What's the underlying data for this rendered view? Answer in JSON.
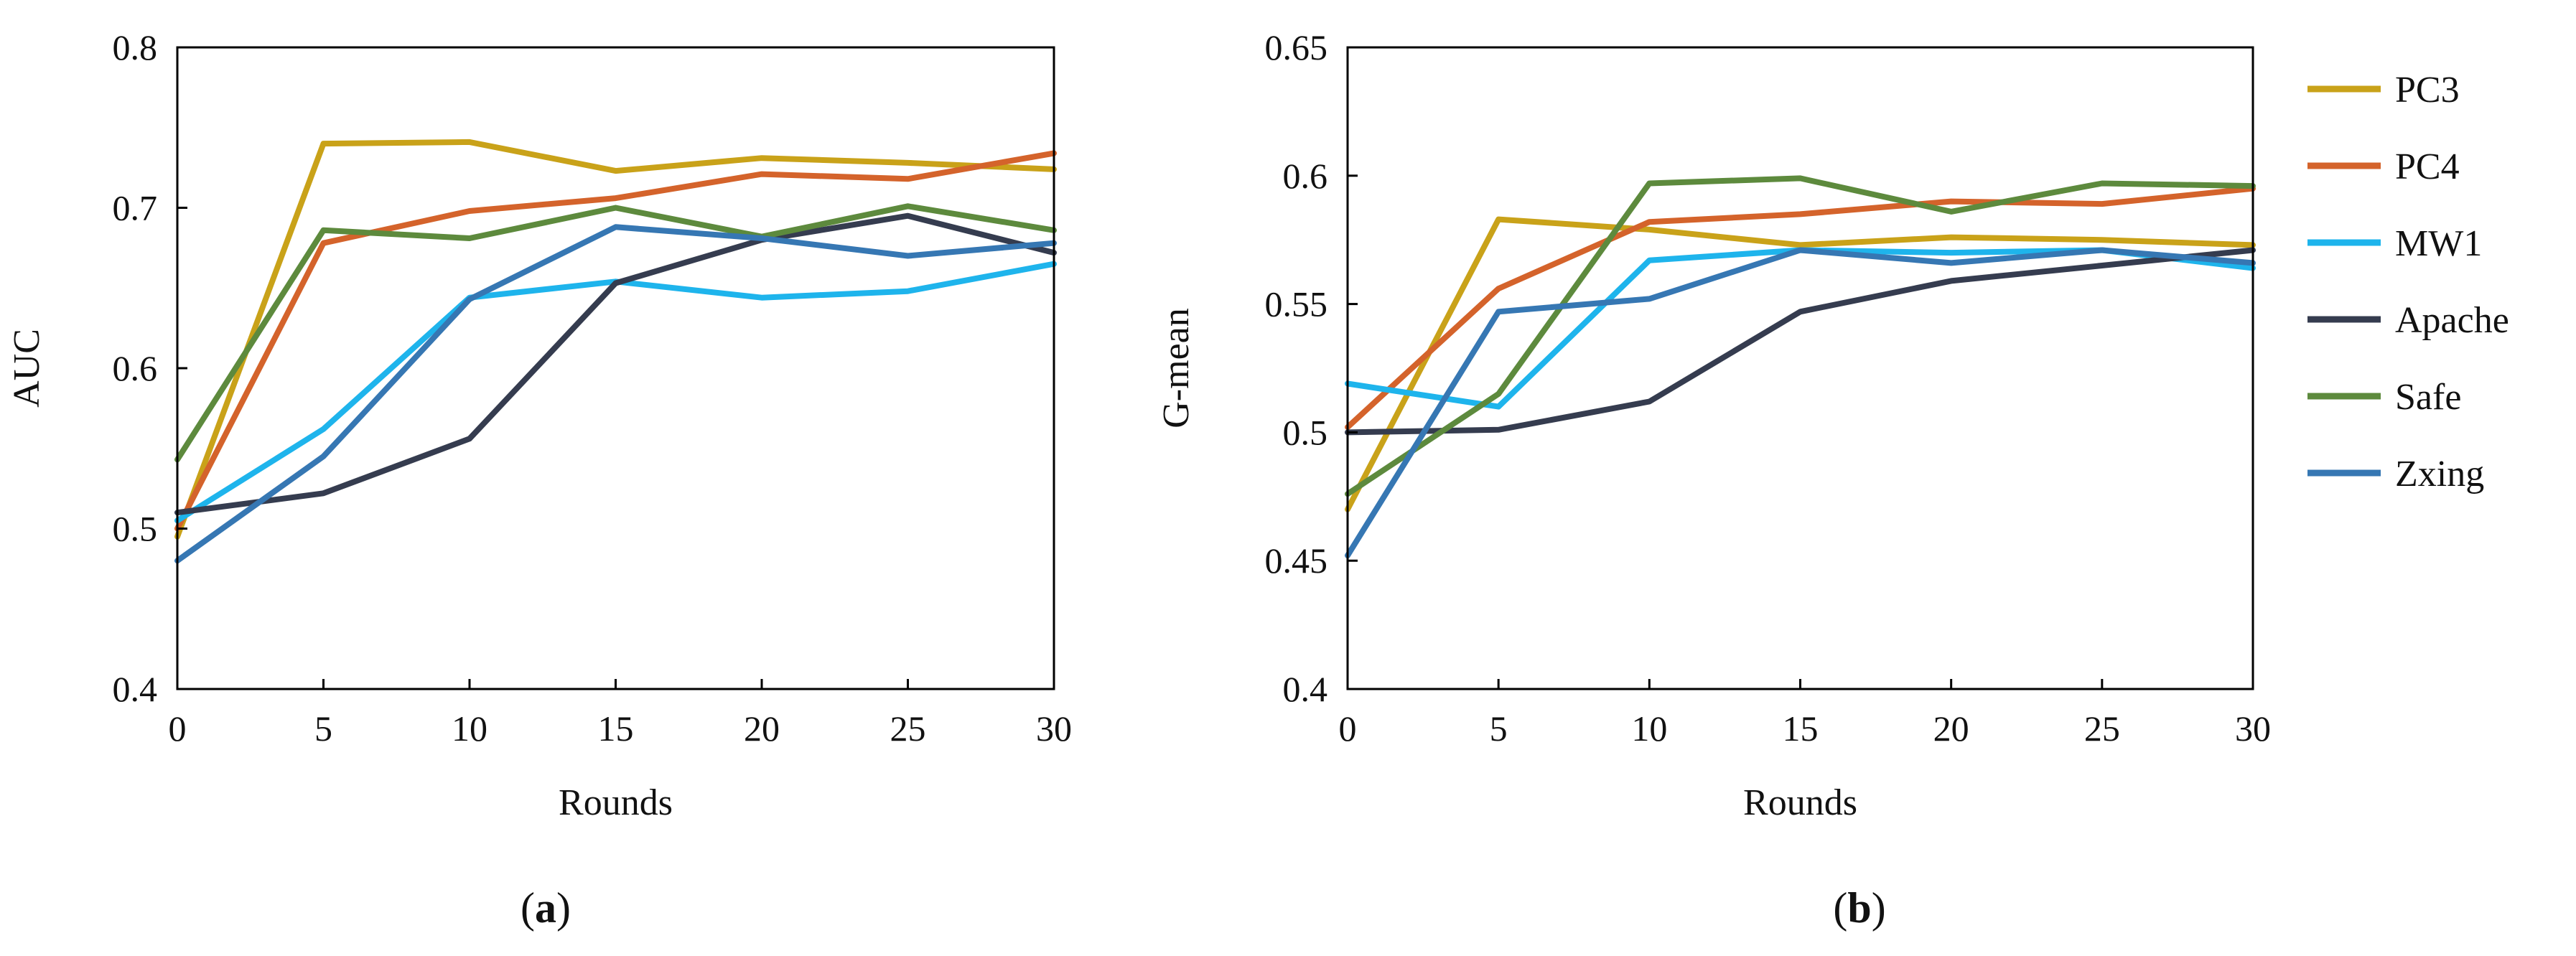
{
  "colors": {
    "PC3": "#C9A219",
    "PC4": "#D4632B",
    "MW1": "#1EB4EC",
    "Apache": "#353C4F",
    "Safe": "#5D8A3D",
    "Zxing": "#3677B3"
  },
  "legend": [
    "PC3",
    "PC4",
    "MW1",
    "Apache",
    "Safe",
    "Zxing"
  ],
  "panels": [
    {
      "open": "(",
      "letter": "a",
      "close": ")"
    },
    {
      "open": "(",
      "letter": "b",
      "close": ")"
    }
  ],
  "chart_data": [
    {
      "type": "line",
      "title": "",
      "xlabel": "Rounds",
      "ylabel": "AUC",
      "x": [
        0,
        5,
        10,
        15,
        20,
        25,
        30
      ],
      "xticks": [
        "0",
        "5",
        "10",
        "15",
        "20",
        "25",
        "30"
      ],
      "yticks": [
        "0.4",
        "0.5",
        "0.6",
        "0.7",
        "0.8"
      ],
      "ytick_values": [
        0.4,
        0.5,
        0.6,
        0.7,
        0.8
      ],
      "xlim": [
        0,
        30
      ],
      "ylim": [
        0.4,
        0.8
      ],
      "grid": false,
      "series": [
        {
          "name": "PC3",
          "values": [
            0.495,
            0.74,
            0.741,
            0.723,
            0.731,
            0.728,
            0.724
          ]
        },
        {
          "name": "PC4",
          "values": [
            0.5,
            0.678,
            0.698,
            0.706,
            0.721,
            0.718,
            0.734
          ]
        },
        {
          "name": "MW1",
          "values": [
            0.505,
            0.562,
            0.644,
            0.654,
            0.644,
            0.648,
            0.665
          ]
        },
        {
          "name": "Apache",
          "values": [
            0.51,
            0.522,
            0.556,
            0.653,
            0.68,
            0.695,
            0.672
          ]
        },
        {
          "name": "Safe",
          "values": [
            0.543,
            0.686,
            0.681,
            0.7,
            0.682,
            0.701,
            0.686
          ]
        },
        {
          "name": "Zxing",
          "values": [
            0.48,
            0.545,
            0.643,
            0.688,
            0.681,
            0.67,
            0.678
          ]
        }
      ]
    },
    {
      "type": "line",
      "title": "",
      "xlabel": "Rounds",
      "ylabel": "G-mean",
      "x": [
        0,
        5,
        10,
        15,
        20,
        25,
        30
      ],
      "xticks": [
        "0",
        "5",
        "10",
        "15",
        "20",
        "25",
        "30"
      ],
      "yticks": [
        "0.4",
        "0.45",
        "0.5",
        "0.55",
        "0.6",
        "0.65"
      ],
      "ytick_values": [
        0.4,
        0.45,
        0.5,
        0.55,
        0.6,
        0.65
      ],
      "xlim": [
        0,
        30
      ],
      "ylim": [
        0.4,
        0.65
      ],
      "grid": false,
      "legend_position": "right",
      "series": [
        {
          "name": "PC3",
          "values": [
            0.47,
            0.583,
            0.579,
            0.573,
            0.576,
            0.575,
            0.573
          ]
        },
        {
          "name": "PC4",
          "values": [
            0.502,
            0.556,
            0.582,
            0.585,
            0.59,
            0.589,
            0.595
          ]
        },
        {
          "name": "MW1",
          "values": [
            0.519,
            0.51,
            0.567,
            0.571,
            0.57,
            0.571,
            0.564
          ]
        },
        {
          "name": "Apache",
          "values": [
            0.5,
            0.501,
            0.512,
            0.547,
            0.559,
            0.565,
            0.571
          ]
        },
        {
          "name": "Safe",
          "values": [
            0.476,
            0.515,
            0.597,
            0.599,
            0.586,
            0.597,
            0.596
          ]
        },
        {
          "name": "Zxing",
          "values": [
            0.452,
            0.547,
            0.552,
            0.571,
            0.566,
            0.571,
            0.566
          ]
        }
      ]
    }
  ]
}
